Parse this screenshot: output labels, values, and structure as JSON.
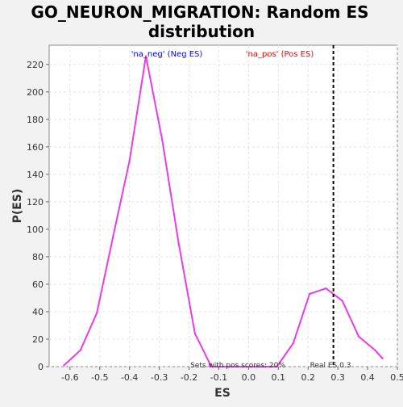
{
  "chart_data": {
    "type": "line",
    "title": "GO_NEURON_MIGRATION: Random ES distribution",
    "title_lines": [
      "GO_NEURON_MIGRATION: Random ES",
      "distribution"
    ],
    "xlabel": "ES",
    "ylabel": "P(ES)",
    "xlim": [
      -0.67,
      0.5
    ],
    "ylim": [
      0,
      234
    ],
    "xticks": [
      -0.6,
      -0.5,
      -0.4,
      -0.3,
      -0.2,
      -0.1,
      0.0,
      0.1,
      0.2,
      0.3,
      0.4,
      0.5
    ],
    "xtick_labels": [
      "-0.6",
      "-0.5",
      "-0.4",
      "-0.3",
      "-0.2",
      "-0.1",
      "0.0",
      "0.1",
      "0.2",
      "0.3",
      "0.4",
      "0.5"
    ],
    "yticks": [
      0,
      20,
      40,
      60,
      80,
      100,
      120,
      140,
      160,
      180,
      200,
      220
    ],
    "ytick_labels": [
      "0",
      "20",
      "40",
      "60",
      "80",
      "100",
      "120",
      "140",
      "160",
      "180",
      "200",
      "220"
    ],
    "grid": true,
    "series": [
      {
        "color": "#e83ce8",
        "x": [
          -0.62,
          -0.565,
          -0.51,
          -0.455,
          -0.4,
          -0.345,
          -0.29,
          -0.235,
          -0.18,
          -0.125,
          -0.07,
          -0.015,
          0.04,
          0.095,
          0.15,
          0.205,
          0.26,
          0.315,
          0.37,
          0.425,
          0.45
        ],
        "y": [
          1,
          12,
          39,
          95,
          150,
          226,
          165,
          90,
          24,
          0,
          0,
          0,
          0,
          0,
          17,
          53,
          57,
          48,
          22,
          12,
          6
        ]
      }
    ],
    "vlines": [
      {
        "x": 0.285,
        "style": "dashed",
        "color": "#000000"
      }
    ],
    "annotations": {
      "neg_label": "'na_neg' (Neg ES)",
      "pos_label": "'na_pos' (Pos ES)",
      "neg_color": "#0000ff",
      "pos_color": "#ff0000",
      "sets_text": "Sets with pos scores: 20%",
      "real_es_text": "Real ES 0.3"
    }
  }
}
